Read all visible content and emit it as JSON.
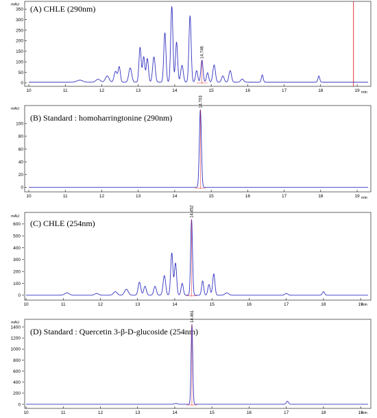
{
  "chart_data": [
    {
      "type": "line",
      "title": "(A) CHLE (290nm)",
      "y_unit": "mAU",
      "x_unit": "min",
      "xlim": [
        10,
        19.3
      ],
      "ylim": [
        -10,
        380
      ],
      "x_ticks": [
        10,
        11,
        12,
        13,
        14,
        15,
        16,
        17,
        18,
        19
      ],
      "y_ticks": [
        0,
        50,
        100,
        150,
        200,
        250,
        300,
        350
      ],
      "baseline": 3,
      "peaks": [
        {
          "rt": 11.4,
          "height": 10,
          "width": 0.08
        },
        {
          "rt": 11.9,
          "height": 14,
          "width": 0.06
        },
        {
          "rt": 12.15,
          "height": 30,
          "width": 0.05
        },
        {
          "rt": 12.38,
          "height": 52,
          "width": 0.04
        },
        {
          "rt": 12.48,
          "height": 72,
          "width": 0.03
        },
        {
          "rt": 12.78,
          "height": 68,
          "width": 0.04
        },
        {
          "rt": 13.05,
          "height": 165,
          "width": 0.03
        },
        {
          "rt": 13.15,
          "height": 120,
          "width": 0.03
        },
        {
          "rt": 13.25,
          "height": 112,
          "width": 0.03
        },
        {
          "rt": 13.43,
          "height": 120,
          "width": 0.035
        },
        {
          "rt": 13.73,
          "height": 235,
          "width": 0.03
        },
        {
          "rt": 13.92,
          "height": 360,
          "width": 0.03
        },
        {
          "rt": 14.05,
          "height": 190,
          "width": 0.03
        },
        {
          "rt": 14.2,
          "height": 80,
          "width": 0.035
        },
        {
          "rt": 14.42,
          "height": 315,
          "width": 0.03
        },
        {
          "rt": 14.6,
          "height": 55,
          "width": 0.03
        },
        {
          "rt": 14.746,
          "height": 105,
          "width": 0.03
        },
        {
          "rt": 14.9,
          "height": 45,
          "width": 0.03
        },
        {
          "rt": 15.08,
          "height": 82,
          "width": 0.035
        },
        {
          "rt": 15.32,
          "height": 30,
          "width": 0.035
        },
        {
          "rt": 15.52,
          "height": 55,
          "width": 0.035
        },
        {
          "rt": 15.85,
          "height": 15,
          "width": 0.04
        },
        {
          "rt": 16.4,
          "height": 35,
          "width": 0.025
        },
        {
          "rt": 17.95,
          "height": 30,
          "width": 0.025
        }
      ],
      "peak_labels": [
        {
          "rt": 14.746,
          "text": "14.746"
        }
      ],
      "marker_line_x": 18.9,
      "line_color": "#3030c0",
      "marker_color": "#e02020"
    },
    {
      "type": "line",
      "title": "(B) Standard : homoharringtonine (290nm)",
      "y_unit": "mAU",
      "x_unit": "min",
      "xlim": [
        10,
        19.3
      ],
      "ylim": [
        -5,
        125
      ],
      "x_ticks": [
        10,
        11,
        12,
        13,
        14,
        15,
        16,
        17,
        18,
        19
      ],
      "y_ticks": [
        0,
        20,
        40,
        60,
        80,
        100
      ],
      "baseline": 0,
      "peaks": [
        {
          "rt": 14.703,
          "height": 122,
          "width": 0.028
        }
      ],
      "peak_labels": [
        {
          "rt": 14.703,
          "text": "14.703"
        }
      ],
      "line_color": "#3030c0",
      "marker_color": "#e02020"
    },
    {
      "type": "line",
      "title": "(C) CHLE (254nm)",
      "y_unit": "mAU",
      "x_unit": "min",
      "xlim": [
        10,
        19.2
      ],
      "ylim": [
        -30,
        680
      ],
      "x_ticks": [
        10,
        11,
        12,
        13,
        14,
        15,
        16,
        17,
        18,
        19
      ],
      "y_ticks": [
        0,
        100,
        200,
        300,
        400,
        500,
        600
      ],
      "baseline": 0,
      "peaks": [
        {
          "rt": 11.1,
          "height": 20,
          "width": 0.06
        },
        {
          "rt": 11.9,
          "height": 15,
          "width": 0.05
        },
        {
          "rt": 12.4,
          "height": 30,
          "width": 0.05
        },
        {
          "rt": 12.7,
          "height": 50,
          "width": 0.05
        },
        {
          "rt": 13.05,
          "height": 110,
          "width": 0.035
        },
        {
          "rt": 13.2,
          "height": 75,
          "width": 0.035
        },
        {
          "rt": 13.47,
          "height": 75,
          "width": 0.035
        },
        {
          "rt": 13.72,
          "height": 165,
          "width": 0.035
        },
        {
          "rt": 13.92,
          "height": 355,
          "width": 0.03
        },
        {
          "rt": 14.02,
          "height": 270,
          "width": 0.03
        },
        {
          "rt": 14.2,
          "height": 100,
          "width": 0.03
        },
        {
          "rt": 14.452,
          "height": 640,
          "width": 0.025
        },
        {
          "rt": 14.75,
          "height": 120,
          "width": 0.028
        },
        {
          "rt": 14.92,
          "height": 90,
          "width": 0.03
        },
        {
          "rt": 15.05,
          "height": 180,
          "width": 0.03
        },
        {
          "rt": 15.4,
          "height": 20,
          "width": 0.05
        },
        {
          "rt": 17.0,
          "height": 15,
          "width": 0.04
        },
        {
          "rt": 18.0,
          "height": 30,
          "width": 0.03
        }
      ],
      "peak_labels": [
        {
          "rt": 14.452,
          "text": "14.452"
        }
      ],
      "line_color": "#3030c0",
      "marker_color": "#e02020"
    },
    {
      "type": "line",
      "title": "(D) Standard : Quercetin 3-β-D-glucoside (254nm)",
      "y_unit": "mAU",
      "x_unit": "min",
      "xlim": [
        10,
        19.2
      ],
      "ylim": [
        -50,
        1500
      ],
      "x_ticks": [
        10,
        11,
        12,
        13,
        14,
        15,
        16,
        17,
        18,
        19
      ],
      "y_ticks": [
        0,
        200,
        400,
        600,
        800,
        1000,
        1200,
        1400
      ],
      "baseline": 0,
      "peaks": [
        {
          "rt": 14.03,
          "height": 15,
          "width": 0.04
        },
        {
          "rt": 14.461,
          "height": 1450,
          "width": 0.022
        },
        {
          "rt": 17.03,
          "height": 55,
          "width": 0.03
        }
      ],
      "peak_labels": [
        {
          "rt": 14.461,
          "text": "14.461"
        }
      ],
      "line_color": "#3030c0",
      "marker_color": "#e02020"
    }
  ]
}
